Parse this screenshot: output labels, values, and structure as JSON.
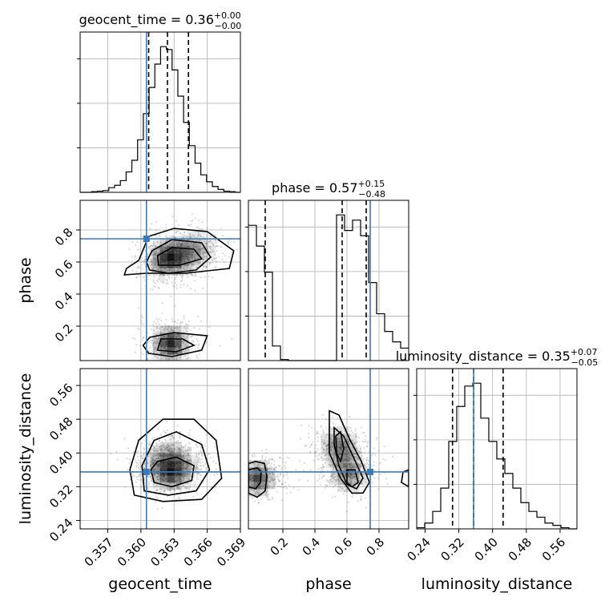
{
  "chart_data": {
    "type": "corner",
    "parameters": [
      "geocent_time",
      "phase",
      "luminosity_distance"
    ],
    "truths": {
      "geocent_time": 0.3605,
      "phase": 0.745,
      "luminosity_distance": 0.355
    },
    "ranges": {
      "geocent_time": [
        0.3545,
        0.369
      ],
      "phase": [
        -0.015,
        0.985
      ],
      "luminosity_distance": [
        0.22,
        0.6
      ]
    },
    "ticks": {
      "geocent_time": [
        0.357,
        0.36,
        0.363,
        0.366,
        0.369
      ],
      "phase": [
        0.2,
        0.4,
        0.6,
        0.8
      ],
      "phase_y": [
        0.2,
        0.4,
        0.6,
        0.8
      ],
      "luminosity_distance": [
        0.24,
        0.32,
        0.4,
        0.48,
        0.56
      ]
    },
    "tick_labels": {
      "geocent_time": [
        "0.357",
        "0.360",
        "0.363",
        "0.366",
        "0.369"
      ],
      "phase": [
        "0.2",
        "0.4",
        "0.6",
        "0.8"
      ],
      "phase_y": [
        "0.2",
        "0.4",
        "0.6",
        "0.8"
      ],
      "luminosity_distance": [
        "0.24",
        "0.32",
        "0.40",
        "0.48",
        "0.56"
      ],
      "luminosity_distance_y": [
        "0.24",
        "0.32",
        "0.40",
        "0.48",
        "0.56"
      ]
    },
    "axis_labels": {
      "geocent_time": "geocent_time",
      "phase": "phase",
      "luminosity_distance": "luminosity_distance"
    },
    "titles": {
      "geocent_time": {
        "text": "geocent_time = 0.36",
        "plus": "+0.00",
        "minus": "−0.00"
      },
      "phase": {
        "text": "phase = 0.57",
        "plus": "+0.15",
        "minus": "−0.48"
      },
      "luminosity_distance": {
        "text": "luminosity_distance = 0.35",
        "plus": "+0.07",
        "minus": "−0.05"
      }
    },
    "histograms": {
      "geocent_time": {
        "bins": [
          0.3545,
          0.35502,
          0.35554,
          0.35606,
          0.35658,
          0.3571,
          0.35762,
          0.35814,
          0.35866,
          0.35918,
          0.3597,
          0.36022,
          0.36074,
          0.36126,
          0.36178,
          0.3623,
          0.36282,
          0.36334,
          0.36386,
          0.36438,
          0.3649,
          0.36542,
          0.36594,
          0.36646,
          0.36698,
          0.3675,
          0.36802,
          0.36854,
          0.369
        ],
        "counts": [
          0,
          0,
          1,
          2,
          3,
          8,
          12,
          20,
          35,
          55,
          90,
          135,
          180,
          220,
          250,
          245,
          210,
          165,
          120,
          80,
          50,
          30,
          18,
          10,
          5,
          2,
          1,
          0
        ],
        "quantiles": [
          0.3607,
          0.3624,
          0.3643
        ]
      },
      "phase": {
        "bins": [
          -0.015,
          0.035,
          0.085,
          0.135,
          0.185,
          0.235,
          0.285,
          0.335,
          0.385,
          0.435,
          0.485,
          0.535,
          0.585,
          0.635,
          0.685,
          0.735,
          0.785,
          0.835,
          0.885,
          0.935,
          0.985
        ],
        "counts": [
          130,
          110,
          85,
          14,
          1,
          0,
          0,
          0,
          0,
          0,
          0,
          140,
          125,
          135,
          120,
          75,
          45,
          28,
          18,
          12
        ],
        "quantiles": [
          0.09,
          0.57,
          0.72
        ]
      },
      "luminosity_distance": {
        "bins": [
          0.22,
          0.239,
          0.258,
          0.277,
          0.296,
          0.315,
          0.334,
          0.353,
          0.372,
          0.391,
          0.41,
          0.429,
          0.448,
          0.467,
          0.486,
          0.505,
          0.524,
          0.543,
          0.562,
          0.581,
          0.6
        ],
        "counts": [
          2,
          10,
          30,
          70,
          150,
          210,
          245,
          250,
          190,
          150,
          120,
          95,
          70,
          45,
          30,
          20,
          10,
          6,
          2,
          0
        ],
        "quantiles": [
          0.305,
          0.355,
          0.425
        ]
      }
    },
    "density": {
      "geocent_time_phase": [
        {
          "x": 0.3627,
          "y": 0.09,
          "w": 1.0
        },
        {
          "x": 0.3627,
          "y": 0.63,
          "w": 1.0
        },
        {
          "x": 0.3638,
          "y": 0.65,
          "w": 0.55
        },
        {
          "x": 0.3651,
          "y": 0.68,
          "w": 0.4
        },
        {
          "x": 0.3619,
          "y": 0.6,
          "w": 0.35
        }
      ],
      "geocent_time_luminosity_distance": [
        {
          "x": 0.3627,
          "y": 0.355,
          "w": 1.0
        },
        {
          "x": 0.3618,
          "y": 0.375,
          "w": 0.5
        },
        {
          "x": 0.3636,
          "y": 0.37,
          "w": 0.45
        },
        {
          "x": 0.3627,
          "y": 0.4,
          "w": 0.3
        }
      ],
      "phase_luminosity_distance": [
        {
          "x": 0.04,
          "y": 0.34,
          "w": 0.85
        },
        {
          "x": 0.61,
          "y": 0.35,
          "w": 0.6
        },
        {
          "x": 0.55,
          "y": 0.42,
          "w": 0.55
        },
        {
          "x": 0.58,
          "y": 0.39,
          "w": 0.4
        }
      ]
    },
    "contours": {
      "geocent_time_phase": [
        [
          [
            0.3585,
            0.52
          ],
          [
            0.3605,
            0.53
          ],
          [
            0.364,
            0.53
          ],
          [
            0.368,
            0.56
          ],
          [
            0.3684,
            0.67
          ],
          [
            0.366,
            0.79
          ],
          [
            0.363,
            0.81
          ],
          [
            0.3607,
            0.76
          ],
          [
            0.3598,
            0.61
          ],
          [
            0.3587,
            0.56
          ]
        ],
        [
          [
            0.3608,
            0.55
          ],
          [
            0.3625,
            0.53
          ],
          [
            0.365,
            0.55
          ],
          [
            0.3663,
            0.63
          ],
          [
            0.3655,
            0.72
          ],
          [
            0.3628,
            0.74
          ],
          [
            0.361,
            0.67
          ],
          [
            0.3605,
            0.6
          ]
        ],
        [
          [
            0.3616,
            0.58
          ],
          [
            0.3635,
            0.58
          ],
          [
            0.3655,
            0.62
          ],
          [
            0.3648,
            0.68
          ],
          [
            0.3628,
            0.69
          ],
          [
            0.3615,
            0.64
          ]
        ],
        [
          [
            0.3607,
            0.03
          ],
          [
            0.3628,
            0.01
          ],
          [
            0.3655,
            0.05
          ],
          [
            0.366,
            0.14
          ],
          [
            0.363,
            0.16
          ],
          [
            0.3608,
            0.13
          ],
          [
            0.3602,
            0.08
          ]
        ],
        [
          [
            0.3615,
            0.05
          ],
          [
            0.3632,
            0.04
          ],
          [
            0.3648,
            0.08
          ],
          [
            0.3638,
            0.12
          ],
          [
            0.3618,
            0.12
          ]
        ]
      ],
      "geocent_time_luminosity_distance": [
        [
          [
            0.3594,
            0.3
          ],
          [
            0.362,
            0.285
          ],
          [
            0.3655,
            0.29
          ],
          [
            0.3673,
            0.34
          ],
          [
            0.3668,
            0.43
          ],
          [
            0.3648,
            0.48
          ],
          [
            0.362,
            0.48
          ],
          [
            0.3598,
            0.43
          ],
          [
            0.359,
            0.36
          ]
        ],
        [
          [
            0.3603,
            0.31
          ],
          [
            0.3625,
            0.3
          ],
          [
            0.365,
            0.31
          ],
          [
            0.3662,
            0.36
          ],
          [
            0.3655,
            0.42
          ],
          [
            0.3632,
            0.45
          ],
          [
            0.3612,
            0.43
          ],
          [
            0.3601,
            0.37
          ]
        ],
        [
          [
            0.3612,
            0.33
          ],
          [
            0.3628,
            0.32
          ],
          [
            0.3646,
            0.335
          ],
          [
            0.3648,
            0.37
          ],
          [
            0.3632,
            0.39
          ],
          [
            0.3615,
            0.38
          ],
          [
            0.3609,
            0.36
          ]
        ]
      ],
      "phase_luminosity_distance": [
        [
          [
            -0.015,
            0.305
          ],
          [
            0.04,
            0.295
          ],
          [
            0.09,
            0.31
          ],
          [
            0.1,
            0.345
          ],
          [
            0.085,
            0.375
          ],
          [
            0.03,
            0.38
          ],
          [
            -0.015,
            0.375
          ]
        ],
        [
          [
            -0.015,
            0.32
          ],
          [
            0.03,
            0.315
          ],
          [
            0.06,
            0.33
          ],
          [
            0.065,
            0.355
          ],
          [
            0.04,
            0.365
          ],
          [
            -0.015,
            0.36
          ]
        ],
        [
          [
            0.49,
            0.5
          ],
          [
            0.55,
            0.49
          ],
          [
            0.62,
            0.43
          ],
          [
            0.69,
            0.38
          ],
          [
            0.74,
            0.33
          ],
          [
            0.7,
            0.305
          ],
          [
            0.63,
            0.305
          ],
          [
            0.56,
            0.34
          ],
          [
            0.49,
            0.4
          ]
        ],
        [
          [
            0.52,
            0.46
          ],
          [
            0.58,
            0.44
          ],
          [
            0.64,
            0.39
          ],
          [
            0.7,
            0.34
          ],
          [
            0.66,
            0.315
          ],
          [
            0.6,
            0.325
          ],
          [
            0.55,
            0.37
          ],
          [
            0.52,
            0.42
          ]
        ],
        [
          [
            0.53,
            0.44
          ],
          [
            0.56,
            0.45
          ],
          [
            0.58,
            0.41
          ],
          [
            0.56,
            0.38
          ],
          [
            0.535,
            0.4
          ]
        ],
        [
          [
            0.6,
            0.36
          ],
          [
            0.65,
            0.36
          ],
          [
            0.67,
            0.33
          ],
          [
            0.63,
            0.32
          ],
          [
            0.6,
            0.33
          ]
        ],
        [
          [
            0.94,
            0.33
          ],
          [
            0.985,
            0.32
          ],
          [
            0.985,
            0.36
          ],
          [
            0.95,
            0.355
          ]
        ]
      ]
    },
    "scatter_seed": 7,
    "grid": true
  }
}
